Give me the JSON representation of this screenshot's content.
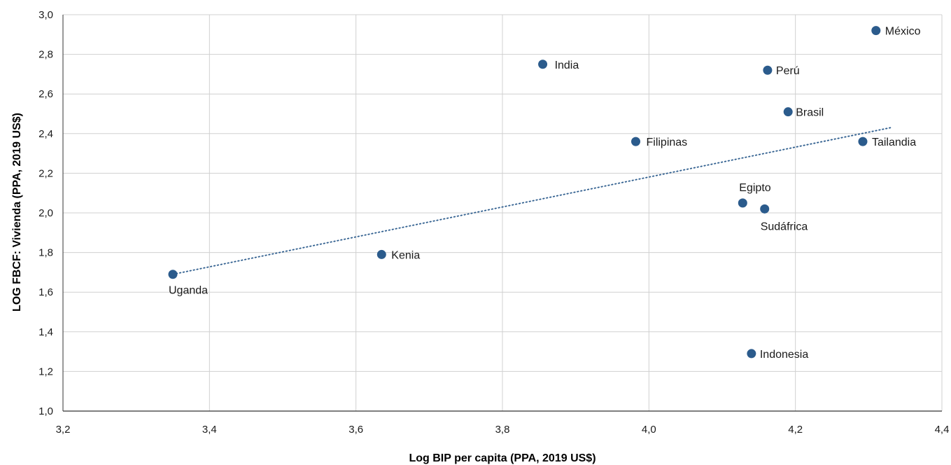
{
  "chart_data": {
    "type": "scatter",
    "title": "",
    "xlabel": "Log BIP per capita (PPA, 2019 US$)",
    "ylabel": "LOG FBCF: Vivienda (PPA, 2019 US$)",
    "xlim": [
      3.2,
      4.4
    ],
    "ylim": [
      1.0,
      3.0
    ],
    "x_ticks": [
      "3,2",
      "3,4",
      "3,6",
      "3,8",
      "4,0",
      "4,2",
      "4,4"
    ],
    "y_ticks": [
      "1,0",
      "1,2",
      "1,4",
      "1,6",
      "1,8",
      "2,0",
      "2,2",
      "2,4",
      "2,6",
      "2,8",
      "3,0"
    ],
    "grid": true,
    "legend": "none",
    "colors": {
      "point": "#2b5b8c",
      "trendline": "#2b5b8c",
      "grid": "#d0d0d0",
      "axis": "#333333"
    },
    "trendline": {
      "style": "dotted",
      "x": [
        3.35,
        4.33
      ],
      "y": [
        1.69,
        2.43
      ]
    },
    "points": [
      {
        "label": "Uganda",
        "x": 3.35,
        "y": 1.69
      },
      {
        "label": "Kenia",
        "x": 3.635,
        "y": 1.79
      },
      {
        "label": "India",
        "x": 3.855,
        "y": 2.75
      },
      {
        "label": "Filipinas",
        "x": 3.982,
        "y": 2.36
      },
      {
        "label": "Egipto",
        "x": 4.128,
        "y": 2.05
      },
      {
        "label": "Sudáfrica",
        "x": 4.158,
        "y": 2.02
      },
      {
        "label": "Indonesia",
        "x": 4.14,
        "y": 1.29
      },
      {
        "label": "Perú",
        "x": 4.162,
        "y": 2.72
      },
      {
        "label": "Brasil",
        "x": 4.19,
        "y": 2.51
      },
      {
        "label": "Tailandia",
        "x": 4.292,
        "y": 2.36
      },
      {
        "label": "México",
        "x": 4.31,
        "y": 2.92
      }
    ]
  }
}
